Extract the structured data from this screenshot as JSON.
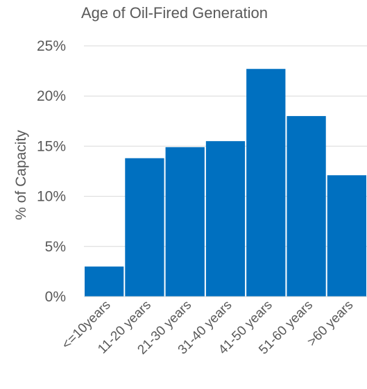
{
  "chart_data": {
    "type": "bar",
    "title": "Age of Oil-Fired Generation",
    "xlabel": "",
    "ylabel": "% of Capacity",
    "ylim": [
      0,
      25
    ],
    "yticks": [
      "0%",
      "5%",
      "10%",
      "15%",
      "20%",
      "25%"
    ],
    "categories": [
      "<=10years",
      "11-20 years",
      "21-30 years",
      "31-40 years",
      "41-50 years",
      "51-60 years",
      ">60 years"
    ],
    "values": [
      3.0,
      13.8,
      14.9,
      15.5,
      22.7,
      18.0,
      12.1
    ],
    "bar_color": "#0070c0",
    "gridlines": true,
    "legend": "none"
  }
}
